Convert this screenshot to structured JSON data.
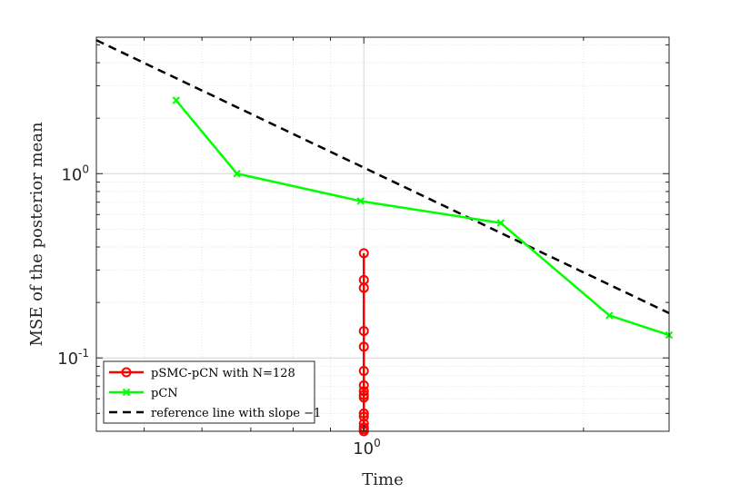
{
  "chart_data": {
    "type": "line",
    "xlabel": "Time",
    "ylabel": "MSE of the posterior mean",
    "xscale": "log",
    "yscale": "log",
    "xlim": [
      0.43,
      2.62
    ],
    "ylim": [
      0.04,
      5.5
    ],
    "grid": true,
    "minor_grid": true,
    "x_ticks": [
      {
        "base": "10",
        "exp": "0",
        "value": 1
      }
    ],
    "y_ticks": [
      {
        "base": "10",
        "exp": "0",
        "value": 1
      },
      {
        "base": "10",
        "exp": "-1",
        "value": 0.1
      }
    ],
    "legend_position": "bottom-left",
    "series": [
      {
        "name": "pSMC-pCN with N=128",
        "color": "#ff0000",
        "marker": "circle",
        "line_style": "solid",
        "x": [
          1,
          1,
          1,
          1,
          1,
          1,
          1,
          1,
          1,
          1,
          1,
          1,
          1,
          1,
          1,
          1,
          1
        ],
        "y": [
          0.37,
          0.265,
          0.24,
          0.14,
          0.115,
          0.085,
          0.071,
          0.066,
          0.063,
          0.061,
          0.05,
          0.048,
          0.044,
          0.042,
          0.041,
          0.04,
          0.0395
        ]
      },
      {
        "name": "pCN",
        "color": "#00ff00",
        "marker": "x",
        "line_style": "solid",
        "x": [
          0.553,
          0.67,
          0.99,
          1.54,
          2.17,
          2.62
        ],
        "y": [
          2.5,
          1.0,
          0.71,
          0.54,
          0.17,
          0.133
        ]
      },
      {
        "name": "reference line with slope −1",
        "color": "#000000",
        "marker": "none",
        "line_style": "dashed",
        "x": [
          0.43,
          2.62
        ],
        "y": [
          5.3,
          0.175
        ]
      }
    ]
  }
}
